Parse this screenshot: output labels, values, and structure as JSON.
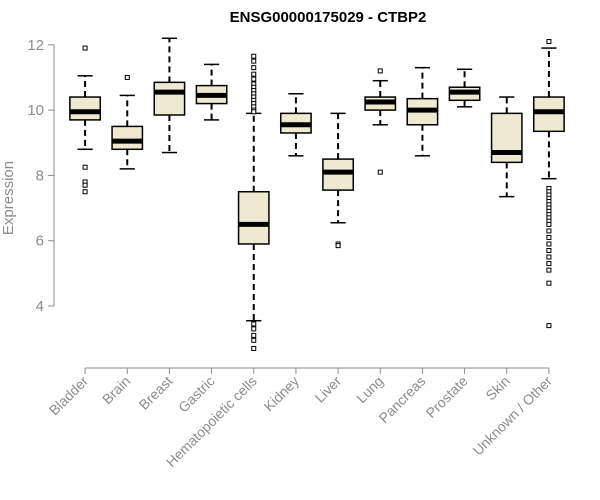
{
  "chart_data": {
    "type": "boxplot",
    "title": "ENSG00000175029 - CTBP2",
    "xlabel": "",
    "ylabel": "Expression",
    "ylim": [
      2.5,
      12.3
    ],
    "yticks": [
      4,
      6,
      8,
      10,
      12
    ],
    "grid": false,
    "legend": "none",
    "box_fill": "#efe9d2",
    "categories": [
      "Bladder",
      "Brain",
      "Breast",
      "Gastric",
      "Hematopoietic cells",
      "Kidney",
      "Liver",
      "Lung",
      "Pancreas",
      "Prostate",
      "Skin",
      "Unknown / Other"
    ],
    "boxes": [
      {
        "whisker_low": 8.8,
        "q1": 9.7,
        "median": 9.95,
        "q3": 10.4,
        "whisker_high": 11.05,
        "outliers": [
          11.9,
          8.25,
          7.8,
          7.7,
          7.5
        ]
      },
      {
        "whisker_low": 8.2,
        "q1": 8.8,
        "median": 9.05,
        "q3": 9.5,
        "whisker_high": 10.45,
        "outliers": [
          11.0
        ]
      },
      {
        "whisker_low": 8.7,
        "q1": 9.85,
        "median": 10.55,
        "q3": 10.85,
        "whisker_high": 12.2,
        "outliers": []
      },
      {
        "whisker_low": 9.7,
        "q1": 10.2,
        "median": 10.45,
        "q3": 10.75,
        "whisker_high": 11.4,
        "outliers": []
      },
      {
        "whisker_low": 3.55,
        "q1": 5.9,
        "median": 6.5,
        "q3": 7.5,
        "whisker_high": 9.9,
        "outliers": [
          11.65,
          11.5,
          11.3,
          11.1,
          10.95,
          10.8,
          10.7,
          10.6,
          10.5,
          10.4,
          10.3,
          10.2,
          10.1,
          10.0,
          9.95,
          3.45,
          3.3,
          3.1,
          2.95,
          2.7
        ]
      },
      {
        "whisker_low": 8.6,
        "q1": 9.3,
        "median": 9.55,
        "q3": 9.9,
        "whisker_high": 10.5,
        "outliers": []
      },
      {
        "whisker_low": 6.55,
        "q1": 7.55,
        "median": 8.1,
        "q3": 8.5,
        "whisker_high": 9.9,
        "outliers": [
          5.9,
          5.85
        ]
      },
      {
        "whisker_low": 9.55,
        "q1": 10.0,
        "median": 10.25,
        "q3": 10.4,
        "whisker_high": 10.9,
        "outliers": [
          11.2,
          8.1
        ]
      },
      {
        "whisker_low": 8.6,
        "q1": 9.55,
        "median": 10.0,
        "q3": 10.35,
        "whisker_high": 11.3,
        "outliers": []
      },
      {
        "whisker_low": 10.1,
        "q1": 10.3,
        "median": 10.55,
        "q3": 10.7,
        "whisker_high": 11.25,
        "outliers": []
      },
      {
        "whisker_low": 7.35,
        "q1": 8.4,
        "median": 8.7,
        "q3": 9.9,
        "whisker_high": 10.4,
        "outliers": []
      },
      {
        "whisker_low": 7.9,
        "q1": 9.35,
        "median": 9.95,
        "q3": 10.4,
        "whisker_high": 11.9,
        "outliers": [
          12.1,
          7.6,
          7.5,
          7.4,
          7.3,
          7.2,
          7.1,
          7.0,
          6.9,
          6.8,
          6.7,
          6.6,
          6.5,
          6.3,
          6.1,
          5.9,
          5.7,
          5.5,
          5.3,
          5.1,
          4.7,
          3.4
        ]
      }
    ]
  }
}
